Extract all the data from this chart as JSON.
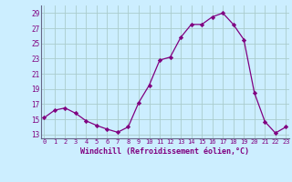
{
  "x": [
    0,
    1,
    2,
    3,
    4,
    5,
    6,
    7,
    8,
    9,
    10,
    11,
    12,
    13,
    14,
    15,
    16,
    17,
    18,
    19,
    20,
    21,
    22,
    23
  ],
  "y": [
    15.2,
    16.2,
    16.5,
    15.8,
    14.8,
    14.2,
    13.7,
    13.3,
    14.0,
    17.2,
    19.5,
    22.8,
    23.2,
    25.8,
    27.5,
    27.5,
    28.5,
    29.0,
    27.5,
    25.5,
    18.5,
    14.7,
    13.2,
    14.0
  ],
  "line_color": "#800080",
  "marker": "D",
  "marker_size": 2.2,
  "bg_color": "#cceeff",
  "grid_color": "#aacccc",
  "xlabel": "Windchill (Refroidissement éolien,°C)",
  "xlabel_color": "#800080",
  "yticks": [
    13,
    15,
    17,
    19,
    21,
    23,
    25,
    27,
    29
  ],
  "xticks": [
    0,
    1,
    2,
    3,
    4,
    5,
    6,
    7,
    8,
    9,
    10,
    11,
    12,
    13,
    14,
    15,
    16,
    17,
    18,
    19,
    20,
    21,
    22,
    23
  ],
  "ylim": [
    12.5,
    30.0
  ],
  "xlim": [
    -0.3,
    23.3
  ]
}
